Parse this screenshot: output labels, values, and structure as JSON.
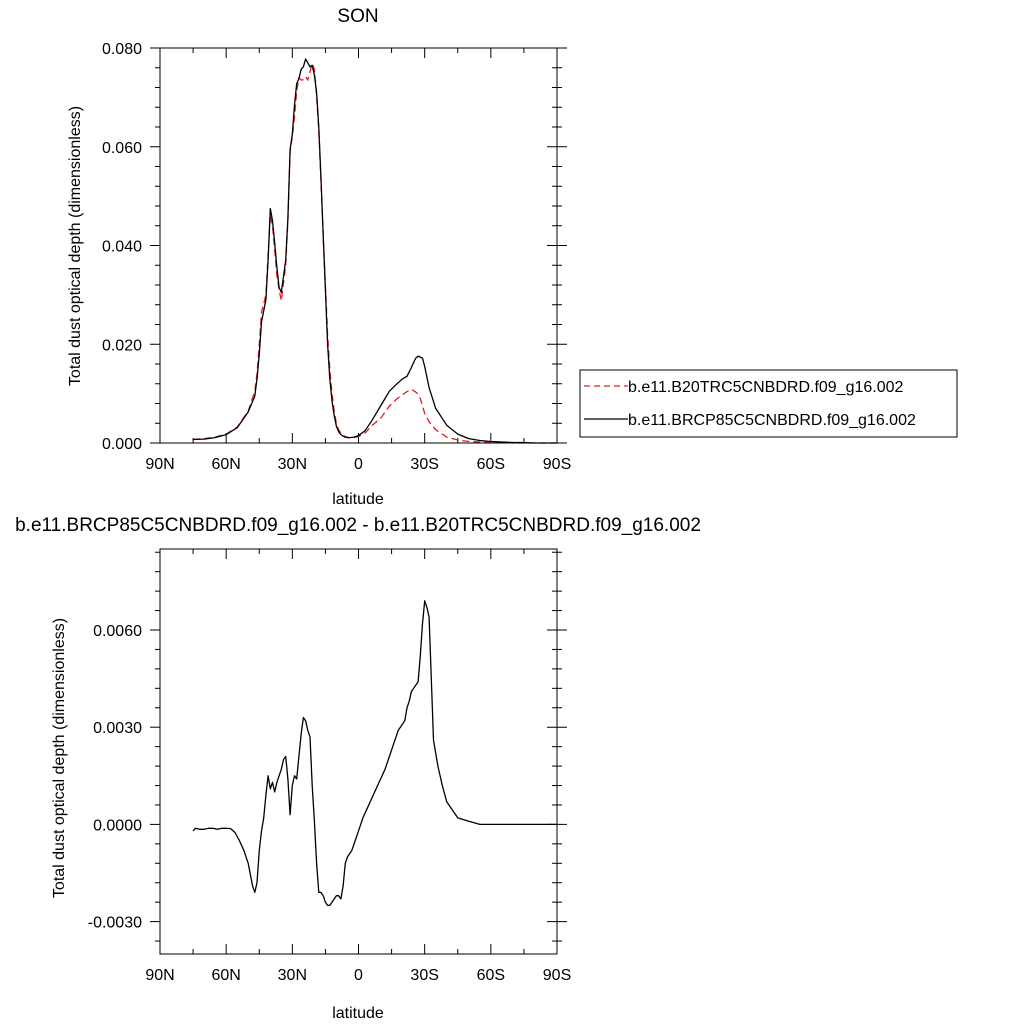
{
  "chart_data": [
    {
      "type": "line",
      "title": "SON",
      "xlabel": "latitude",
      "ylabel": "Total dust optical depth (dimensionless)",
      "xlim": [
        90,
        -90
      ],
      "ylim": [
        0,
        0.08
      ],
      "xticks": [
        90,
        60,
        30,
        0,
        -30,
        -60,
        -90
      ],
      "xtick_labels": [
        "90N",
        "60N",
        "30N",
        "0",
        "30S",
        "60S",
        "90S"
      ],
      "yticks": [
        0,
        0.02,
        0.04,
        0.06,
        0.08
      ],
      "ytick_labels": [
        "0.000",
        "0.020",
        "0.040",
        "0.060",
        "0.080"
      ],
      "legend_position": "right",
      "series": [
        {
          "name": "b.e11.B20TRC5CNBDRD.f09_g16.002",
          "color": "#e8191f",
          "dash": "dashed",
          "x": [
            75,
            70,
            65,
            60,
            55,
            50,
            47,
            46,
            45,
            44,
            42,
            41,
            40,
            39,
            38,
            37,
            36,
            35,
            33,
            32,
            31,
            30,
            29,
            28,
            27,
            26,
            25,
            24,
            23,
            22,
            21,
            20,
            19,
            18,
            17,
            16,
            15,
            14,
            13,
            12,
            11,
            10,
            9,
            8,
            7,
            6,
            5,
            4,
            2,
            0,
            -3,
            -6,
            -10,
            -14,
            -17,
            -20,
            -22,
            -24,
            -25,
            -26,
            -27,
            -28,
            -29,
            -30,
            -32,
            -35,
            -40,
            -45,
            -50,
            -55,
            -60,
            -65,
            -70,
            -75,
            -80,
            -85,
            -90
          ],
          "y": [
            0.0007,
            0.0009,
            0.0012,
            0.0018,
            0.0032,
            0.0065,
            0.0105,
            0.014,
            0.02,
            0.0265,
            0.03,
            0.038,
            0.046,
            0.044,
            0.039,
            0.034,
            0.031,
            0.0288,
            0.036,
            0.045,
            0.059,
            0.062,
            0.066,
            0.0712,
            0.074,
            0.0735,
            0.0736,
            0.0742,
            0.0735,
            0.0752,
            0.0768,
            0.0757,
            0.0702,
            0.063,
            0.053,
            0.042,
            0.032,
            0.022,
            0.015,
            0.01,
            0.0065,
            0.004,
            0.0027,
            0.002,
            0.0016,
            0.0013,
            0.0012,
            0.0011,
            0.0011,
            0.0013,
            0.002,
            0.0035,
            0.005,
            0.0075,
            0.0088,
            0.0098,
            0.0104,
            0.0109,
            0.0106,
            0.0103,
            0.0099,
            0.009,
            0.0075,
            0.006,
            0.0043,
            0.0027,
            0.0012,
            0.0006,
            0.0003,
            0.0002,
            0.0001,
            0.0001,
            0,
            0,
            0,
            0,
            0
          ]
        },
        {
          "name": "b.e11.BRCP85C5CNBDRD.f09_g16.002",
          "color": "#000000",
          "dash": "solid",
          "x": [
            75,
            70,
            65,
            60,
            55,
            50,
            47,
            46,
            45,
            44,
            42,
            41,
            40,
            39,
            38,
            37,
            36,
            35,
            33,
            32,
            31,
            30,
            29,
            28,
            27,
            26,
            25,
            24,
            23,
            22,
            21,
            20,
            19,
            18,
            17,
            16,
            15,
            14,
            13,
            12,
            11,
            10,
            9,
            8,
            7,
            6,
            5,
            4,
            2,
            0,
            -3,
            -6,
            -10,
            -14,
            -17,
            -20,
            -22,
            -24,
            -25,
            -26,
            -27,
            -28,
            -29,
            -30,
            -32,
            -35,
            -40,
            -45,
            -50,
            -55,
            -60,
            -65,
            -70,
            -75,
            -80,
            -85,
            -90
          ],
          "y": [
            0.0007,
            0.0008,
            0.0011,
            0.0017,
            0.0031,
            0.0063,
            0.0095,
            0.013,
            0.018,
            0.0245,
            0.029,
            0.037,
            0.0475,
            0.045,
            0.0405,
            0.0355,
            0.0315,
            0.0305,
            0.037,
            0.0455,
            0.0595,
            0.0625,
            0.0685,
            0.0728,
            0.0738,
            0.0757,
            0.0762,
            0.0778,
            0.077,
            0.0762,
            0.0765,
            0.0745,
            0.071,
            0.064,
            0.0535,
            0.042,
            0.031,
            0.02,
            0.013,
            0.0085,
            0.0055,
            0.0034,
            0.0023,
            0.0017,
            0.0014,
            0.0012,
            0.0011,
            0.0011,
            0.0012,
            0.0015,
            0.0025,
            0.0045,
            0.0075,
            0.0105,
            0.0118,
            0.013,
            0.0135,
            0.0153,
            0.0163,
            0.0172,
            0.0176,
            0.0174,
            0.0172,
            0.0155,
            0.0112,
            0.007,
            0.0036,
            0.0018,
            0.0009,
            0.0005,
            0.0003,
            0.0002,
            0.0001,
            0.0001,
            0,
            0,
            0
          ]
        }
      ]
    },
    {
      "type": "line",
      "title": "b.e11.BRCP85C5CNBDRD.f09_g16.002 - b.e11.B20TRC5CNBDRD.f09_g16.002",
      "xlabel": "latitude",
      "ylabel": "Total dust optical depth (dimensionless)",
      "xlim": [
        90,
        -90
      ],
      "ylim": [
        -0.004,
        0.0085
      ],
      "xticks": [
        90,
        60,
        30,
        0,
        -30,
        -60,
        -90
      ],
      "xtick_labels": [
        "90N",
        "60N",
        "30N",
        "0",
        "30S",
        "60S",
        "90S"
      ],
      "yticks": [
        -0.003,
        0,
        0.003,
        0.006
      ],
      "ytick_labels": [
        "-0.0030",
        "0.0000",
        "0.0030",
        "0.0060"
      ],
      "series": [
        {
          "color": "#000000",
          "dash": "solid",
          "x": [
            75,
            74,
            72,
            70,
            68,
            66,
            64,
            62,
            60,
            58,
            56,
            54,
            52,
            50,
            48,
            47,
            46,
            45,
            44,
            43,
            42,
            41,
            40,
            39,
            38,
            37,
            36,
            35,
            34,
            33,
            32,
            31,
            30,
            29,
            28,
            27,
            26,
            25,
            24,
            23,
            22,
            21,
            20,
            19,
            18,
            17,
            16,
            15,
            14,
            13,
            12,
            11,
            10,
            9,
            8,
            7,
            6,
            5,
            4,
            3,
            2,
            1,
            0,
            -2,
            -4,
            -6,
            -8,
            -10,
            -12,
            -14,
            -16,
            -18,
            -20,
            -21,
            -22,
            -23,
            -24,
            -25,
            -26,
            -27,
            -28,
            -29,
            -30,
            -31,
            -32,
            -34,
            -36,
            -38,
            -40,
            -45,
            -50,
            -55,
            -60,
            -70,
            -80,
            -90
          ],
          "y": [
            -0.0002,
            -0.00012,
            -0.00015,
            -0.00015,
            -0.00012,
            -0.00012,
            -0.00015,
            -0.00012,
            -0.00012,
            -0.00013,
            -0.00025,
            -0.0005,
            -0.0008,
            -0.0012,
            -0.0019,
            -0.0021,
            -0.0018,
            -0.0008,
            -0.0002,
            0.0002,
            0.0009,
            0.0015,
            0.0011,
            0.0013,
            0.001,
            0.0013,
            0.0015,
            0.0017,
            0.002,
            0.0021,
            0.0014,
            0.0003,
            0.0012,
            0.0015,
            0.0014,
            0.0021,
            0.0028,
            0.0033,
            0.0032,
            0.0029,
            0.0027,
            0.0012,
            0.0001,
            -0.0012,
            -0.0021,
            -0.0021,
            -0.0022,
            -0.0024,
            -0.0025,
            -0.0025,
            -0.0024,
            -0.0023,
            -0.0022,
            -0.0022,
            -0.0023,
            -0.0019,
            -0.0012,
            -0.001,
            -0.0009,
            -0.0008,
            -0.0006,
            -0.0004,
            -0.0002,
            0.0002,
            0.0005,
            0.0008,
            0.0011,
            0.0014,
            0.0017,
            0.0021,
            0.0025,
            0.0029,
            0.0031,
            0.0032,
            0.0036,
            0.0038,
            0.0041,
            0.0042,
            0.0043,
            0.0044,
            0.0052,
            0.0062,
            0.0069,
            0.0067,
            0.0064,
            0.0026,
            0.0018,
            0.0012,
            0.0007,
            0.0002,
            0.0001,
            0,
            0,
            0,
            0,
            0
          ]
        }
      ]
    }
  ]
}
